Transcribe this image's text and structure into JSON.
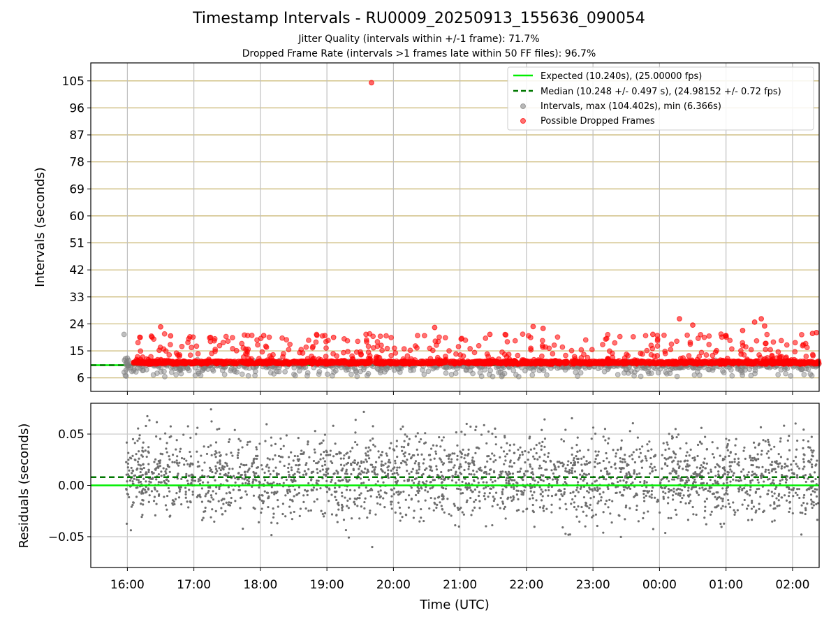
{
  "chart_data": [
    {
      "type": "scatter",
      "title": "Timestamp Intervals - RU0009_20250913_155636_090054",
      "subtitle_1": "Jitter Quality (intervals within +/-1 frame): 71.7%",
      "subtitle_2": "Dropped Frame Rate (intervals >1 frames late within 50 FF files): 96.7%",
      "ylabel": "Intervals (seconds)",
      "ylim": [
        1.5,
        111
      ],
      "yticks": [
        6,
        15,
        24,
        33,
        42,
        51,
        60,
        69,
        78,
        87,
        96,
        105
      ],
      "ytick_labels": [
        "6",
        "15",
        "24",
        "33",
        "42",
        "51",
        "60",
        "69",
        "78",
        "87",
        "96",
        "105"
      ],
      "xlim_hours": [
        15.45,
        26.4
      ],
      "xticks_hours": [
        16,
        17,
        18,
        19,
        20,
        21,
        22,
        23,
        24,
        25,
        26
      ],
      "xtick_labels": [
        "16:00",
        "17:00",
        "18:00",
        "19:00",
        "20:00",
        "21:00",
        "22:00",
        "23:00",
        "00:00",
        "01:00",
        "02:00"
      ],
      "grid": "horizontal lines tan, vertical lines gray",
      "legend_position": "top-right",
      "legend": [
        "Expected (10.240s), (25.00000 fps)",
        "Median (10.248 +/- 0.497 s), (24.98152 +/- 0.72 fps)",
        "Intervals, max (104.402s), min (6.366s)",
        "Possible Dropped Frames"
      ],
      "expected_interval": 10.24,
      "median_interval": 10.248,
      "max_interval": 104.402,
      "min_interval": 6.366,
      "time_range_hours": [
        15.95,
        26.4
      ],
      "dropped_frame_range_seconds": [
        11,
        26
      ],
      "dropped_frame_points": [
        {
          "t": 19.67,
          "y": 104.4
        },
        {
          "t": 16.37,
          "y": 19.6
        },
        {
          "t": 16.5,
          "y": 23.0
        },
        {
          "t": 16.65,
          "y": 20.0
        },
        {
          "t": 17.25,
          "y": 19.5
        },
        {
          "t": 18.05,
          "y": 20.1
        },
        {
          "t": 18.85,
          "y": 20.2
        },
        {
          "t": 19.1,
          "y": 19.5
        },
        {
          "t": 20.62,
          "y": 22.8
        },
        {
          "t": 21.45,
          "y": 20.5
        },
        {
          "t": 22.1,
          "y": 23.1
        },
        {
          "t": 22.25,
          "y": 22.5
        },
        {
          "t": 23.9,
          "y": 20.5
        },
        {
          "t": 24.3,
          "y": 25.7
        },
        {
          "t": 24.5,
          "y": 23.6
        },
        {
          "t": 25.0,
          "y": 20.1
        },
        {
          "t": 25.25,
          "y": 21.8
        },
        {
          "t": 25.43,
          "y": 24.6
        },
        {
          "t": 25.53,
          "y": 25.7
        },
        {
          "t": 25.58,
          "y": 23.3
        },
        {
          "t": 26.3,
          "y": 20.8
        },
        {
          "t": 26.36,
          "y": 21.1
        }
      ],
      "series": [
        {
          "name": "Expected (10.240s), (25.00000 fps)",
          "color": "#00ee00",
          "style": "solid"
        },
        {
          "name": "Median (10.248 +/- 0.497 s), (24.98152 +/- 0.72 fps)",
          "color": "#007700",
          "style": "dashed"
        },
        {
          "name": "Intervals, max (104.402s), min (6.366s)",
          "color": "#808080",
          "style": "marker"
        },
        {
          "name": "Possible Dropped Frames",
          "color": "#ff0000",
          "style": "marker"
        }
      ]
    },
    {
      "type": "scatter",
      "xlabel": "Time (UTC)",
      "ylabel": "Residuals (seconds)",
      "ylim": [
        -0.08,
        0.08
      ],
      "yticks": [
        0.05,
        0.0,
        -0.05
      ],
      "ytick_labels": [
        "0.05",
        "0.00",
        "−0.05"
      ],
      "xlim_hours": [
        15.45,
        26.4
      ],
      "xticks_hours": [
        16,
        17,
        18,
        19,
        20,
        21,
        22,
        23,
        24,
        25,
        26
      ],
      "xtick_labels": [
        "16:00",
        "17:00",
        "18:00",
        "19:00",
        "20:00",
        "21:00",
        "22:00",
        "23:00",
        "00:00",
        "01:00",
        "02:00"
      ],
      "grid": true,
      "expected_residual": 0.0,
      "median_residual": 0.008,
      "residual_spread_std": 0.02,
      "colors": {
        "points": "#6e6e6e",
        "expected": "#00ee00",
        "median": "#007700"
      }
    }
  ]
}
